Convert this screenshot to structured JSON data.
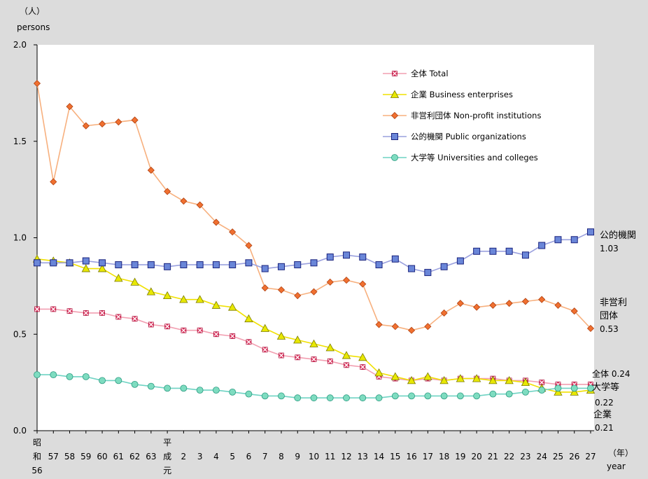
{
  "chart_data": {
    "type": "line",
    "ylabel_lines": [
      "（人）",
      "persons"
    ],
    "xlabel_lines": [
      "（年）",
      "year"
    ],
    "ylim": [
      0,
      2.0
    ],
    "yticks": [
      "0.0",
      "0.5",
      "1.0",
      "1.5",
      "2.0"
    ],
    "x_tick_labels": [
      [
        "昭",
        "和",
        "56"
      ],
      [
        "57"
      ],
      [
        "58"
      ],
      [
        "59"
      ],
      [
        "60"
      ],
      [
        "61"
      ],
      [
        "62"
      ],
      [
        "63"
      ],
      [
        "平",
        "成",
        "元"
      ],
      [
        "2"
      ],
      [
        "3"
      ],
      [
        "4"
      ],
      [
        "5"
      ],
      [
        "6"
      ],
      [
        "7"
      ],
      [
        "8"
      ],
      [
        "9"
      ],
      [
        "10"
      ],
      [
        "11"
      ],
      [
        "12"
      ],
      [
        "13"
      ],
      [
        "14"
      ],
      [
        "15"
      ],
      [
        "16"
      ],
      [
        "17"
      ],
      [
        "18"
      ],
      [
        "19"
      ],
      [
        "20"
      ],
      [
        "21"
      ],
      [
        "22"
      ],
      [
        "23"
      ],
      [
        "24"
      ],
      [
        "25"
      ],
      [
        "26"
      ],
      [
        "27"
      ]
    ],
    "grid": false,
    "legend_position": "top-right",
    "series": [
      {
        "name": "全体 Total",
        "color": "#f29fb1",
        "marker": "x-square",
        "markerColor": "#e0406a",
        "values": [
          0.63,
          0.63,
          0.62,
          0.61,
          0.61,
          0.59,
          0.58,
          0.55,
          0.54,
          0.52,
          0.52,
          0.5,
          0.49,
          0.46,
          0.42,
          0.39,
          0.38,
          0.37,
          0.36,
          0.34,
          0.33,
          0.28,
          0.27,
          0.26,
          0.27,
          0.26,
          0.27,
          0.27,
          0.27,
          0.26,
          0.26,
          0.25,
          0.24,
          0.24,
          0.24
        ]
      },
      {
        "name": "企業 Business enterprises",
        "color": "#f0e000",
        "marker": "triangle",
        "markerColor": "#e8e800",
        "values": [
          0.89,
          0.88,
          0.87,
          0.84,
          0.84,
          0.79,
          0.77,
          0.72,
          0.7,
          0.68,
          0.68,
          0.65,
          0.64,
          0.58,
          0.53,
          0.49,
          0.47,
          0.45,
          0.43,
          0.39,
          0.38,
          0.3,
          0.28,
          0.26,
          0.28,
          0.26,
          0.27,
          0.27,
          0.26,
          0.26,
          0.25,
          0.22,
          0.2,
          0.2,
          0.21
        ]
      },
      {
        "name": "非営利団体 Non-profit institutions",
        "color": "#f7b07e",
        "marker": "diamond",
        "markerColor": "#f07030",
        "values": [
          1.8,
          1.29,
          1.68,
          1.58,
          1.59,
          1.6,
          1.61,
          1.35,
          1.24,
          1.19,
          1.17,
          1.08,
          1.03,
          0.96,
          0.74,
          0.73,
          0.7,
          0.72,
          0.77,
          0.78,
          0.76,
          0.55,
          0.54,
          0.52,
          0.54,
          0.61,
          0.66,
          0.64,
          0.65,
          0.66,
          0.67,
          0.68,
          0.65,
          0.62,
          0.53
        ]
      },
      {
        "name": "公的機関 Public organizations",
        "color": "#9aa0de",
        "marker": "square",
        "markerColor": "#6a86d8",
        "values": [
          0.87,
          0.87,
          0.87,
          0.88,
          0.87,
          0.86,
          0.86,
          0.86,
          0.85,
          0.86,
          0.86,
          0.86,
          0.86,
          0.87,
          0.84,
          0.85,
          0.86,
          0.87,
          0.9,
          0.91,
          0.9,
          0.86,
          0.89,
          0.84,
          0.82,
          0.85,
          0.88,
          0.93,
          0.93,
          0.93,
          0.91,
          0.96,
          0.99,
          0.99,
          1.03
        ]
      },
      {
        "name": "大学等 Universities and colleges",
        "color": "#6fd3c3",
        "marker": "circle",
        "markerColor": "#7edcc0",
        "values": [
          0.29,
          0.29,
          0.28,
          0.28,
          0.26,
          0.26,
          0.24,
          0.23,
          0.22,
          0.22,
          0.21,
          0.21,
          0.2,
          0.19,
          0.18,
          0.18,
          0.17,
          0.17,
          0.17,
          0.17,
          0.17,
          0.17,
          0.18,
          0.18,
          0.18,
          0.18,
          0.18,
          0.18,
          0.19,
          0.19,
          0.2,
          0.21,
          0.22,
          0.22,
          0.22
        ]
      }
    ],
    "end_labels": {
      "public": [
        "公的機関",
        "1.03"
      ],
      "nonprofit": [
        "非営利",
        "団体",
        "0.53"
      ],
      "total": "全体 0.24",
      "univ": [
        "大学等",
        "0.22"
      ],
      "business": [
        "企業",
        "0.21"
      ]
    }
  }
}
